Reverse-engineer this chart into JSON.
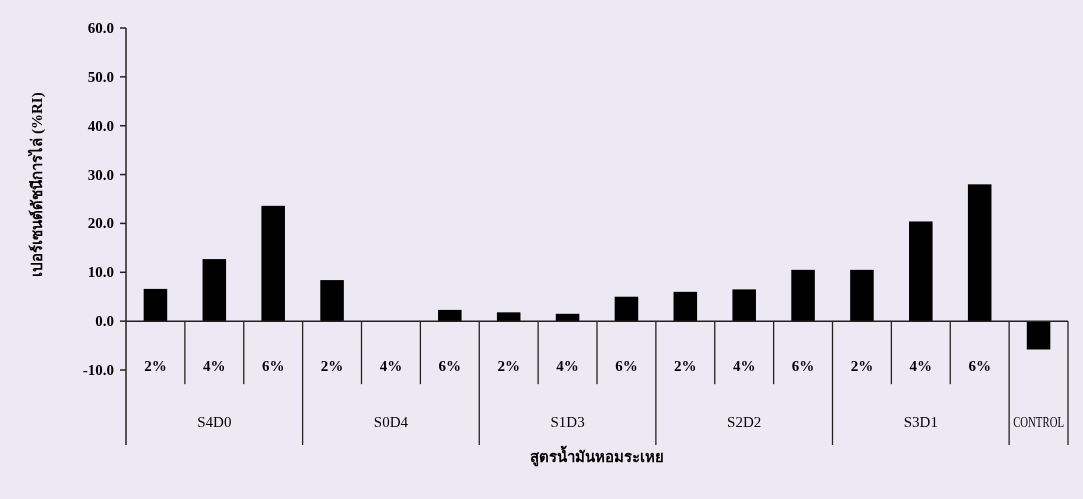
{
  "chart_data": {
    "type": "bar",
    "xlabel": "สูตรน้ำมันหอมระเหย",
    "ylabel": "เปอร์เซนต์ดัชนีการไล่ (%RI)",
    "categories": [
      "2%",
      "4%",
      "6%",
      "2%",
      "4%",
      "6%",
      "2%",
      "4%",
      "6%",
      "2%",
      "4%",
      "6%",
      "2%",
      "4%",
      "6%",
      null
    ],
    "values": [
      6.6,
      12.7,
      23.6,
      8.4,
      0,
      2.3,
      1.8,
      1.5,
      5.0,
      6.0,
      6.5,
      10.5,
      10.5,
      20.4,
      28.0,
      -5.8
    ],
    "color": "#000000",
    "annotations": [
      "S4D0",
      "S0D4",
      "S1D3",
      "S2D2",
      "S3D1",
      "CONTROL"
    ],
    "ylim": [
      -10,
      60
    ],
    "yticks": [
      {
        "value": -10,
        "label": "-10.0"
      },
      {
        "value": 0,
        "label": "0.0"
      },
      {
        "value": 10,
        "label": "10.0"
      },
      {
        "value": 20,
        "label": "20.0"
      },
      {
        "value": 30,
        "label": "30.0"
      },
      {
        "value": 40,
        "label": "40.0"
      },
      {
        "value": 50,
        "label": "50.0"
      },
      {
        "value": 60,
        "label": "60.0"
      }
    ],
    "grid": false
  }
}
